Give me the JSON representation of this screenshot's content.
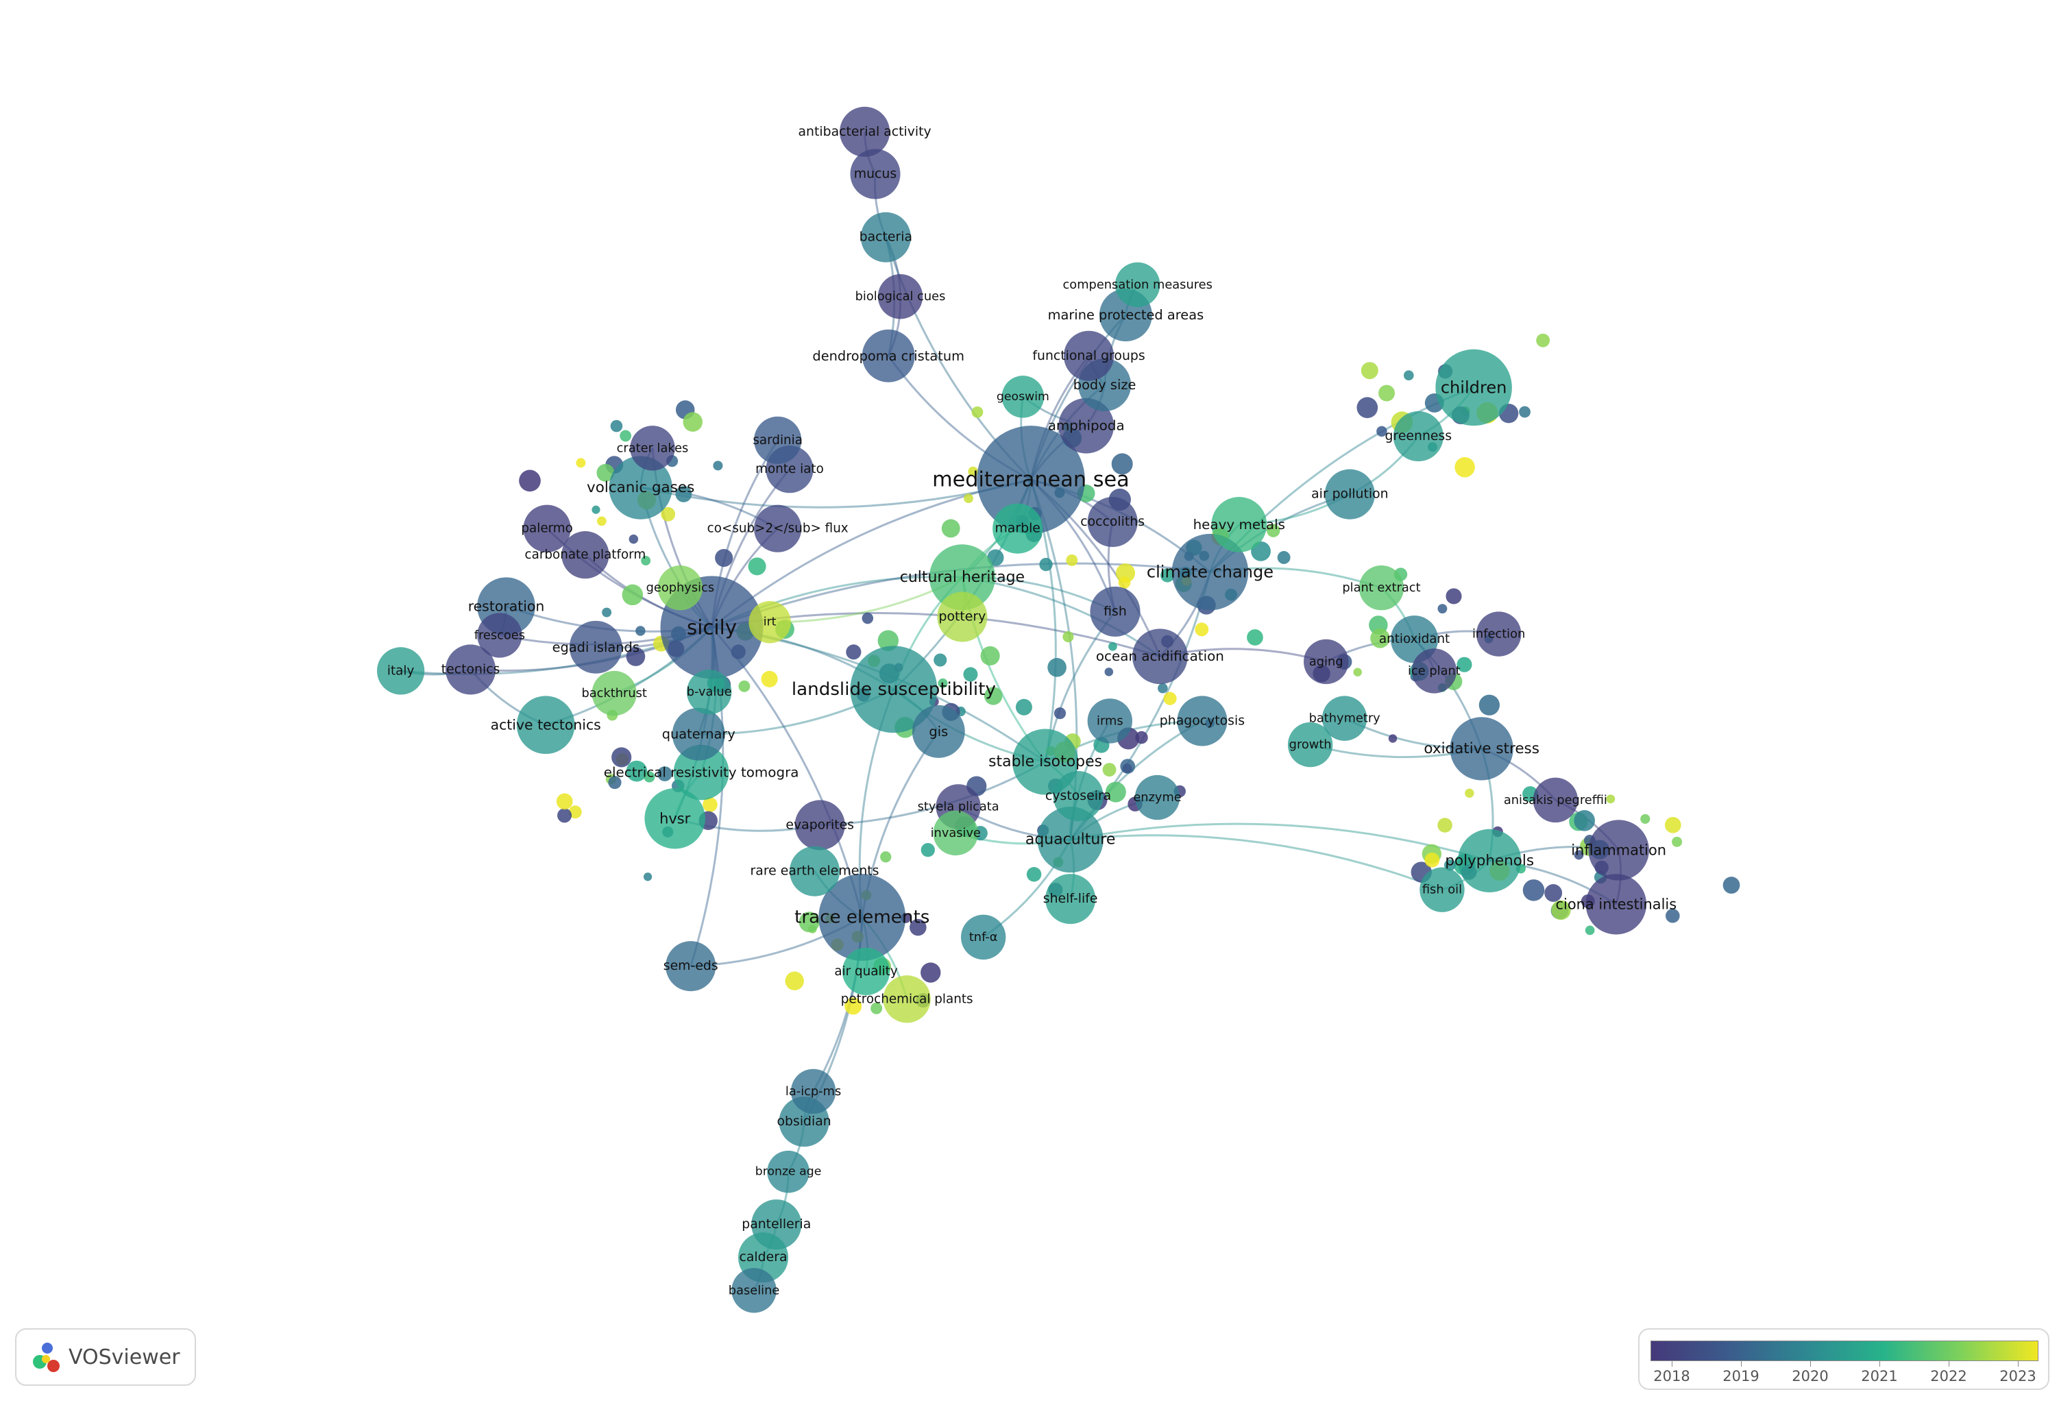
{
  "app": {
    "name": "VOSviewer"
  },
  "color_scale": {
    "colors": [
      "#45397a",
      "#3b5b8c",
      "#2e8892",
      "#27b38a",
      "#7ed15a",
      "#f0e722"
    ]
  },
  "legend": {
    "years": [
      "2018",
      "2019",
      "2020",
      "2021",
      "2022",
      "2023"
    ]
  },
  "items": [
    {
      "label": "mediterranean sea",
      "weight": 3.2,
      "year": 2019.2
    },
    {
      "label": "sicily",
      "weight": 3.0,
      "year": 2019.0
    },
    {
      "label": "landslide susceptibility",
      "weight": 2.4,
      "year": 2020.3
    },
    {
      "label": "trace elements",
      "weight": 2.4,
      "year": 2019.2
    },
    {
      "label": "climate change",
      "weight": 2.0,
      "year": 2019.3
    },
    {
      "label": "children",
      "weight": 2.0,
      "year": 2020.6
    },
    {
      "label": "cultural heritage",
      "weight": 1.6,
      "year": 2021.4
    },
    {
      "label": "stable isotopes",
      "weight": 1.6,
      "year": 2020.6
    },
    {
      "label": "aquaculture",
      "weight": 1.6,
      "year": 2020.2
    },
    {
      "label": "volcanic gases",
      "weight": 1.5,
      "year": 2020.0
    },
    {
      "label": "polyphenols",
      "weight": 1.5,
      "year": 2020.6
    },
    {
      "label": "oxidative stress",
      "weight": 1.5,
      "year": 2019.3
    },
    {
      "label": "inflammation",
      "weight": 1.4,
      "year": 2018.3
    },
    {
      "label": "ciona intestinalis",
      "weight": 1.4,
      "year": 2018.2
    },
    {
      "label": "hvsr",
      "weight": 1.4,
      "year": 2020.9
    },
    {
      "label": "active tectonics",
      "weight": 1.3,
      "year": 2020.4
    },
    {
      "label": "restoration",
      "weight": 1.3,
      "year": 2019.3
    },
    {
      "label": "electrical resistivity tomogra",
      "weight": 1.2,
      "year": 2020.8
    },
    {
      "label": "ocean acidification",
      "weight": 1.2,
      "year": 2018.5
    },
    {
      "label": "heavy metals",
      "weight": 1.2,
      "year": 2021.2
    },
    {
      "label": "amphipoda",
      "weight": 1.2,
      "year": 2018.4
    },
    {
      "label": "body size",
      "weight": 1.1,
      "year": 2019.5
    },
    {
      "label": "marine protected areas",
      "weight": 1.1,
      "year": 2019.5
    },
    {
      "label": "dendropoma cristatum",
      "weight": 1.1,
      "year": 2019.0
    },
    {
      "label": "functional groups",
      "weight": 1.0,
      "year": 2018.4
    },
    {
      "label": "bacteria",
      "weight": 1.0,
      "year": 2019.8
    },
    {
      "label": "antibacterial activity",
      "weight": 1.0,
      "year": 2018.3
    },
    {
      "label": "mucus",
      "weight": 1.0,
      "year": 2018.4
    },
    {
      "label": "quaternary",
      "weight": 1.1,
      "year": 2019.5
    },
    {
      "label": "gis",
      "weight": 1.1,
      "year": 2019.5
    },
    {
      "label": "egadi islands",
      "weight": 1.1,
      "year": 2018.8
    },
    {
      "label": "tectonics",
      "weight": 1.0,
      "year": 2018.4
    },
    {
      "label": "italy",
      "weight": 0.9,
      "year": 2020.5
    },
    {
      "label": "evaporites",
      "weight": 1.0,
      "year": 2018.3
    },
    {
      "label": "rare earth elements",
      "weight": 1.0,
      "year": 2020.4
    },
    {
      "label": "fish",
      "weight": 1.0,
      "year": 2018.7
    },
    {
      "label": "marble",
      "weight": 1.0,
      "year": 2021.0
    },
    {
      "label": "pottery",
      "weight": 1.0,
      "year": 2022.4
    },
    {
      "label": "phagocytosis",
      "weight": 1.0,
      "year": 2019.6
    },
    {
      "label": "greenness",
      "weight": 1.0,
      "year": 2020.5
    },
    {
      "label": "air pollution",
      "weight": 1.0,
      "year": 2019.9
    },
    {
      "label": "coccoliths",
      "weight": 1.0,
      "year": 2018.5
    },
    {
      "label": "cystoseira",
      "weight": 1.0,
      "year": 2020.5
    },
    {
      "label": "shelf-life",
      "weight": 1.0,
      "year": 2020.6
    },
    {
      "label": "sem-eds",
      "weight": 1.0,
      "year": 2019.4
    },
    {
      "label": "obsidian",
      "weight": 1.0,
      "year": 2019.9
    },
    {
      "label": "pantelleria",
      "weight": 1.0,
      "year": 2020.3
    },
    {
      "label": "caldera",
      "weight": 1.0,
      "year": 2020.5
    },
    {
      "label": "monte iato",
      "weight": 0.9,
      "year": 2018.6
    },
    {
      "label": "sardinia",
      "weight": 0.9,
      "year": 2019.0
    },
    {
      "label": "palermo",
      "weight": 0.9,
      "year": 2018.2
    },
    {
      "label": "carbonate platform",
      "weight": 0.9,
      "year": 2018.3
    },
    {
      "label": "crater lakes",
      "weight": 0.8,
      "year": 2018.4
    },
    {
      "label": "co<sub>2</sub> flux",
      "weight": 0.9,
      "year": 2018.4
    },
    {
      "label": "geophysics",
      "weight": 0.8,
      "year": 2022.0
    },
    {
      "label": "frescoes",
      "weight": 0.8,
      "year": 2018.4
    },
    {
      "label": "backthrust",
      "weight": 0.8,
      "year": 2021.8
    },
    {
      "label": "b-value",
      "weight": 0.8,
      "year": 2020.5
    },
    {
      "label": "irt",
      "weight": 0.7,
      "year": 2022.6
    },
    {
      "label": "geoswim",
      "weight": 0.7,
      "year": 2020.7
    },
    {
      "label": "compensation measures",
      "weight": 0.8,
      "year": 2020.6
    },
    {
      "label": "biological cues",
      "weight": 0.8,
      "year": 2018.2
    },
    {
      "label": "plant extract",
      "weight": 0.8,
      "year": 2021.6
    },
    {
      "label": "antioxidant",
      "weight": 0.9,
      "year": 2019.8
    },
    {
      "label": "infection",
      "weight": 0.8,
      "year": 2018.3
    },
    {
      "label": "aging",
      "weight": 0.8,
      "year": 2018.3
    },
    {
      "label": "ice plant",
      "weight": 0.8,
      "year": 2018.3
    },
    {
      "label": "bathymetry",
      "weight": 0.8,
      "year": 2020.3
    },
    {
      "label": "growth",
      "weight": 0.8,
      "year": 2020.5
    },
    {
      "label": "irms",
      "weight": 0.8,
      "year": 2019.6
    },
    {
      "label": "enzyme",
      "weight": 0.8,
      "year": 2019.8
    },
    {
      "label": "styela plicata",
      "weight": 0.8,
      "year": 2018.3
    },
    {
      "label": "invasive",
      "weight": 0.8,
      "year": 2021.6
    },
    {
      "label": "anisakis pegreffii",
      "weight": 0.8,
      "year": 2018.2
    },
    {
      "label": "fish oil",
      "weight": 0.8,
      "year": 2020.5
    },
    {
      "label": "tnf-α",
      "weight": 0.8,
      "year": 2020.0
    },
    {
      "label": "air quality",
      "weight": 0.9,
      "year": 2021.0
    },
    {
      "label": "petrochemical plants",
      "weight": 0.9,
      "year": 2022.5
    },
    {
      "label": "la-icp-ms",
      "weight": 0.8,
      "year": 2019.5
    },
    {
      "label": "bronze age",
      "weight": 0.7,
      "year": 2020.0
    },
    {
      "label": "baseline",
      "weight": 0.8,
      "year": 2019.6
    }
  ],
  "links": [
    [
      "sicily",
      "mediterranean sea"
    ],
    [
      "sicily",
      "landslide susceptibility"
    ],
    [
      "sicily",
      "trace elements"
    ],
    [
      "sicily",
      "volcanic gases"
    ],
    [
      "sicily",
      "restoration"
    ],
    [
      "sicily",
      "egadi islands"
    ],
    [
      "sicily",
      "tectonics"
    ],
    [
      "sicily",
      "active tectonics"
    ],
    [
      "sicily",
      "quaternary"
    ],
    [
      "sicily",
      "hvsr"
    ],
    [
      "sicily",
      "electrical resistivity tomogra"
    ],
    [
      "sicily",
      "cultural heritage"
    ],
    [
      "sicily",
      "monte iato"
    ],
    [
      "sicily",
      "co<sub>2</sub> flux"
    ],
    [
      "sicily",
      "geophysics"
    ],
    [
      "sicily",
      "palermo"
    ],
    [
      "sicily",
      "carbonate platform"
    ],
    [
      "sicily",
      "frescoes"
    ],
    [
      "sicily",
      "backthrust"
    ],
    [
      "sicily",
      "crater lakes"
    ],
    [
      "sicily",
      "sardinia"
    ],
    [
      "sicily",
      "italy"
    ],
    [
      "sicily",
      "b-value"
    ],
    [
      "sicily",
      "sem-eds"
    ],
    [
      "sicily",
      "climate change"
    ],
    [
      "sicily",
      "ocean acidification"
    ],
    [
      "sicily",
      "stable isotopes"
    ],
    [
      "mediterranean sea",
      "dendropoma cristatum"
    ],
    [
      "mediterranean sea",
      "amphipoda"
    ],
    [
      "mediterranean sea",
      "body size"
    ],
    [
      "mediterranean sea",
      "climate change"
    ],
    [
      "mediterranean sea",
      "cultural heritage"
    ],
    [
      "mediterranean sea",
      "bacteria"
    ],
    [
      "mediterranean sea",
      "marine protected areas"
    ],
    [
      "mediterranean sea",
      "functional groups"
    ],
    [
      "mediterranean sea",
      "fish"
    ],
    [
      "mediterranean sea",
      "aquaculture"
    ],
    [
      "mediterranean sea",
      "stable isotopes"
    ],
    [
      "mediterranean sea",
      "coccoliths"
    ],
    [
      "mediterranean sea",
      "ocean acidification"
    ],
    [
      "mediterranean sea",
      "geoswim"
    ],
    [
      "mediterranean sea",
      "marble"
    ],
    [
      "mediterranean sea",
      "landslide susceptibility"
    ],
    [
      "mediterranean sea",
      "volcanic gases"
    ],
    [
      "bacteria",
      "mucus"
    ],
    [
      "mucus",
      "antibacterial activity"
    ],
    [
      "bacteria",
      "biological cues"
    ],
    [
      "biological cues",
      "dendropoma cristatum"
    ],
    [
      "bacteria",
      "dendropoma cristatum"
    ],
    [
      "climate change",
      "children"
    ],
    [
      "climate change",
      "heavy metals"
    ],
    [
      "climate change",
      "air pollution"
    ],
    [
      "children",
      "greenness"
    ],
    [
      "greenness",
      "air pollution"
    ],
    [
      "air pollution",
      "heavy metals"
    ],
    [
      "climate change",
      "ocean acidification"
    ],
    [
      "climate change",
      "aquaculture"
    ],
    [
      "climate change",
      "plant extract"
    ],
    [
      "plant extract",
      "antioxidant"
    ],
    [
      "antioxidant",
      "ice plant"
    ],
    [
      "antioxidant",
      "infection"
    ],
    [
      "ocean acidification",
      "aging"
    ],
    [
      "aging",
      "antioxidant"
    ],
    [
      "antioxidant",
      "oxidative stress"
    ],
    [
      "oxidative stress",
      "bathymetry"
    ],
    [
      "oxidative stress",
      "growth"
    ],
    [
      "oxidative stress",
      "polyphenols"
    ],
    [
      "oxidative stress",
      "anisakis pegreffii"
    ],
    [
      "polyphenols",
      "inflammation"
    ],
    [
      "polyphenols",
      "fish oil"
    ],
    [
      "polyphenols",
      "ciona intestinalis"
    ],
    [
      "inflammation",
      "ciona intestinalis"
    ],
    [
      "anisakis pegreffii",
      "inflammation"
    ],
    [
      "aquaculture",
      "polyphenols"
    ],
    [
      "aquaculture",
      "shelf-life"
    ],
    [
      "aquaculture",
      "cystoseira"
    ],
    [
      "aquaculture",
      "enzyme"
    ],
    [
      "aquaculture",
      "phagocytosis"
    ],
    [
      "aquaculture",
      "irms"
    ],
    [
      "aquaculture",
      "tnf-α"
    ],
    [
      "aquaculture",
      "styela plicata"
    ],
    [
      "aquaculture",
      "invasive"
    ],
    [
      "aquaculture",
      "fish oil"
    ],
    [
      "stable isotopes",
      "cystoseira"
    ],
    [
      "stable isotopes",
      "landslide susceptibility"
    ],
    [
      "stable isotopes",
      "phagocytosis"
    ],
    [
      "stable isotopes",
      "fish"
    ],
    [
      "stable isotopes",
      "cultural heritage"
    ],
    [
      "stable isotopes",
      "evaporites"
    ],
    [
      "landslide susceptibility",
      "gis"
    ],
    [
      "landslide susceptibility",
      "cultural heritage"
    ],
    [
      "landslide susceptibility",
      "quaternary"
    ],
    [
      "trace elements",
      "rare earth elements"
    ],
    [
      "trace elements",
      "air quality"
    ],
    [
      "trace elements",
      "petrochemical plants"
    ],
    [
      "trace elements",
      "sem-eds"
    ],
    [
      "trace elements",
      "obsidian"
    ],
    [
      "trace elements",
      "la-icp-ms"
    ],
    [
      "trace elements",
      "landslide susceptibility"
    ],
    [
      "trace elements",
      "gis"
    ],
    [
      "obsidian",
      "la-icp-ms"
    ],
    [
      "obsidian",
      "bronze age"
    ],
    [
      "bronze age",
      "pantelleria"
    ],
    [
      "pantelleria",
      "caldera"
    ],
    [
      "caldera",
      "baseline"
    ],
    [
      "cultural heritage",
      "pottery"
    ],
    [
      "cultural heritage",
      "marble"
    ],
    [
      "cultural heritage",
      "irt"
    ],
    [
      "cultural heritage",
      "fish"
    ],
    [
      "cultural heritage",
      "ocean acidification"
    ],
    [
      "evaporites",
      "hvsr"
    ],
    [
      "hvsr",
      "electrical resistivity tomogra"
    ],
    [
      "active tectonics",
      "tectonics"
    ],
    [
      "tectonics",
      "italy"
    ],
    [
      "restoration",
      "frescoes"
    ],
    [
      "volcanic gases",
      "crater lakes"
    ],
    [
      "volcanic gases",
      "co<sub>2</sub> flux"
    ],
    [
      "body size",
      "amphipoda"
    ],
    [
      "body size",
      "functional groups"
    ],
    [
      "body size",
      "marine protected areas"
    ],
    [
      "marine protected areas",
      "compensation measures"
    ],
    [
      "amphipoda",
      "geoswim"
    ],
    [
      "fish",
      "coccoliths"
    ]
  ]
}
